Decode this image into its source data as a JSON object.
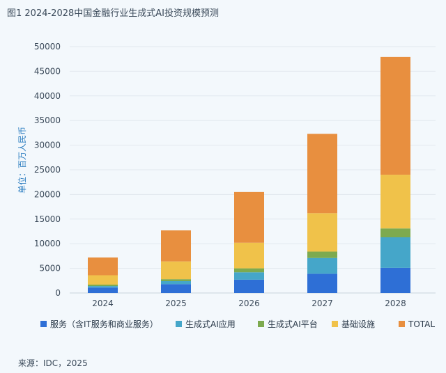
{
  "title": "图1 2024-2028中国金融行业生成式AI投资规模预测",
  "source": "来源：IDC，2025",
  "chart_data": {
    "type": "bar",
    "stacked": true,
    "categories": [
      "2024",
      "2025",
      "2026",
      "2027",
      "2028"
    ],
    "ylabel": "单位：百万人民币",
    "ylim": [
      0,
      50000
    ],
    "yticks": [
      0,
      5000,
      10000,
      15000,
      20000,
      25000,
      30000,
      35000,
      40000,
      45000,
      50000
    ],
    "grid": true,
    "legend_position": "bottom",
    "series": [
      {
        "name": "服务（含IT服务和商业服务）",
        "color": "#2e6fd6",
        "values": [
          1100,
          1800,
          2700,
          3900,
          5100
        ]
      },
      {
        "name": "生成式AI应用",
        "color": "#45a6c9",
        "values": [
          300,
          600,
          1500,
          3200,
          6200
        ]
      },
      {
        "name": "生成式AI平台",
        "color": "#7daa4f",
        "values": [
          300,
          400,
          800,
          1300,
          1800
        ]
      },
      {
        "name": "基础设施",
        "color": "#f0c24a",
        "values": [
          1900,
          3600,
          5200,
          7800,
          10900
        ]
      },
      {
        "name": "TOTAL",
        "color": "#e88f3f",
        "values": [
          3600,
          6300,
          10300,
          16100,
          23900
        ]
      }
    ]
  }
}
